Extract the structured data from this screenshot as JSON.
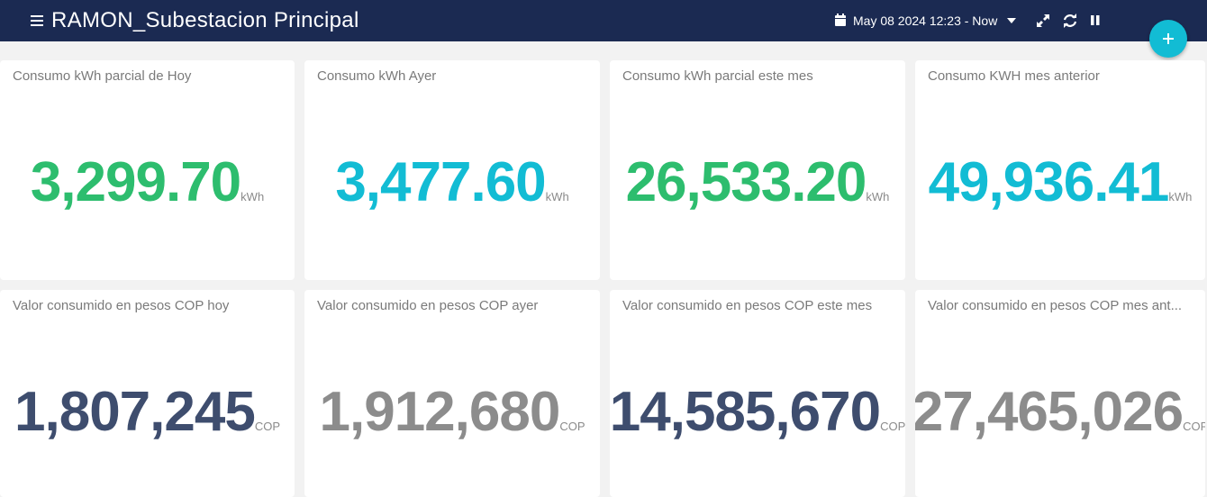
{
  "header": {
    "title": "RAMON_Subestacion Principal",
    "time_range": "May 08 2024 12:23 - Now"
  },
  "rows": [
    [
      {
        "title": "Consumo kWh parcial de Hoy",
        "value": "3,299.70",
        "unit": "kWh",
        "color": "#2dbd6e"
      },
      {
        "title": "Consumo kWh Ayer",
        "value": "3,477.60",
        "unit": "kWh",
        "color": "#12bcd4"
      },
      {
        "title": "Consumo kWh parcial este mes",
        "value": "26,533.20",
        "unit": "kWh",
        "color": "#2dbd6e"
      },
      {
        "title": "Consumo KWH mes anterior",
        "value": "49,936.41",
        "unit": "kWh",
        "color": "#12bcd4"
      }
    ],
    [
      {
        "title": "Valor consumido en pesos COP hoy",
        "value": "1,807,245",
        "unit": "COP",
        "color": "#3e4d6e"
      },
      {
        "title": "Valor consumido en pesos COP ayer",
        "value": "1,912,680",
        "unit": "COP",
        "color": "#8c8c8c"
      },
      {
        "title": "Valor consumido en pesos COP este mes",
        "value": "14,585,670",
        "unit": "COP",
        "color": "#3e4d6e"
      },
      {
        "title": "Valor consumido en pesos COP mes ant...",
        "value": "27,465,026",
        "unit": "COP",
        "color": "#8c8c8c"
      }
    ]
  ]
}
